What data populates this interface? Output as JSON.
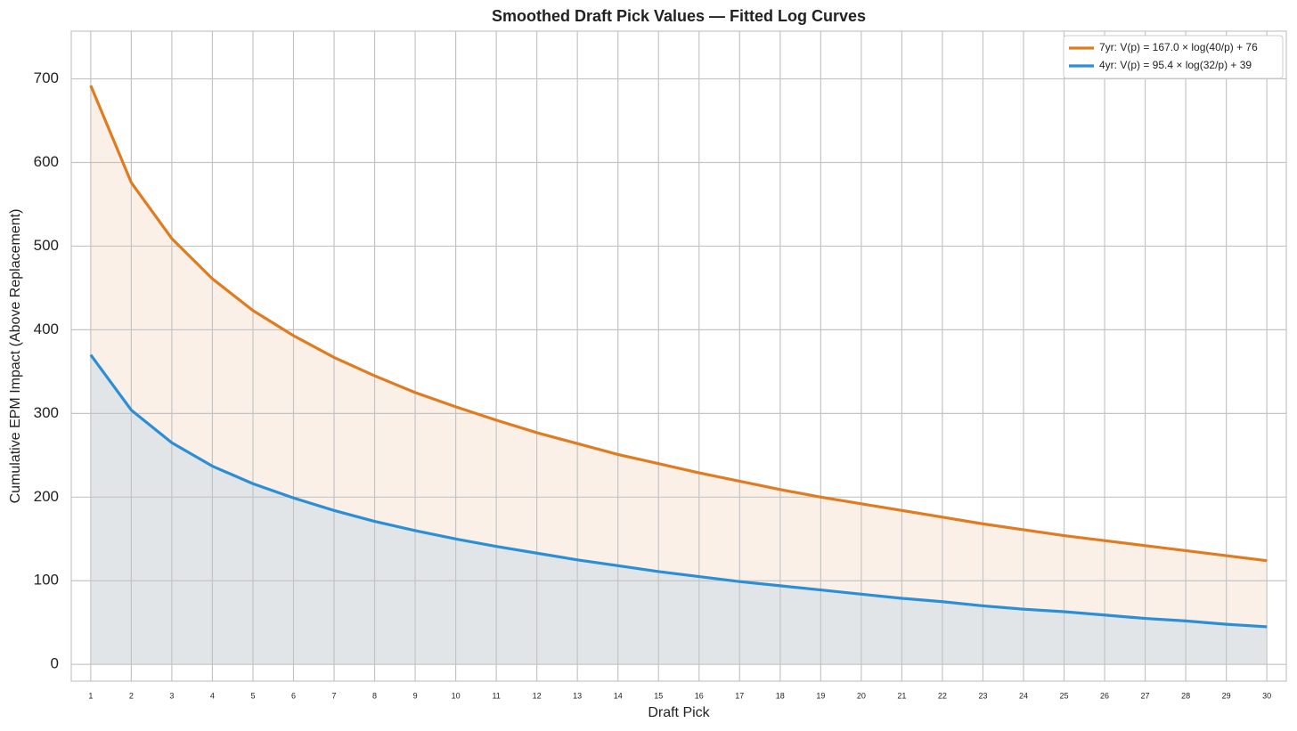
{
  "chart_data": {
    "type": "line",
    "title": "Smoothed Draft Pick Values — Fitted Log Curves",
    "xlabel": "Draft Pick",
    "ylabel": "Cumulative EPM Impact (Above Replacement)",
    "x": [
      1,
      2,
      3,
      4,
      5,
      6,
      7,
      8,
      9,
      10,
      11,
      12,
      13,
      14,
      15,
      16,
      17,
      18,
      19,
      20,
      21,
      22,
      23,
      24,
      25,
      26,
      27,
      28,
      29,
      30
    ],
    "xlim": [
      0.52,
      30.48
    ],
    "xticks": [
      1,
      2,
      3,
      4,
      5,
      6,
      7,
      8,
      9,
      10,
      11,
      12,
      13,
      14,
      15,
      16,
      17,
      18,
      19,
      20,
      21,
      22,
      23,
      24,
      25,
      26,
      27,
      28,
      29,
      30
    ],
    "ylim": [
      -20,
      757
    ],
    "yticks": [
      0,
      100,
      200,
      300,
      400,
      500,
      600,
      700
    ],
    "grid": true,
    "legend": "upper right",
    "fill": true,
    "series": [
      {
        "name": "7yr: V(p) = 167.0 × log(40/p) + 76",
        "color": "#e07b20",
        "fill_color": "#fbf0e7",
        "values": [
          692,
          576,
          509,
          461,
          423,
          393,
          367,
          345,
          325,
          308,
          292,
          277,
          264,
          251,
          240,
          229,
          219,
          209,
          200,
          192,
          184,
          176,
          168,
          161,
          154,
          148,
          142,
          136,
          130,
          124
        ]
      },
      {
        "name": "4yr: V(p) = 95.4 × log(32/p) + 39",
        "color": "#2a8fd6",
        "fill_color": "#e1e5e7",
        "values": [
          370,
          304,
          265,
          237,
          216,
          199,
          184,
          171,
          160,
          150,
          141,
          133,
          125,
          118,
          111,
          105,
          99,
          94,
          89,
          84,
          79,
          75,
          70,
          66,
          63,
          59,
          55,
          52,
          48,
          45
        ]
      }
    ]
  }
}
